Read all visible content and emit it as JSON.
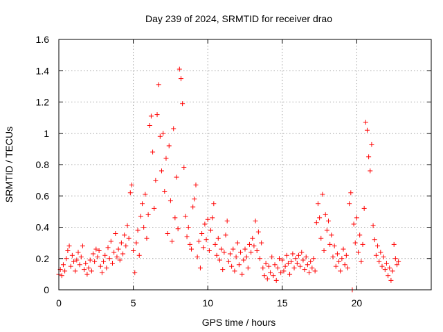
{
  "chart_data": {
    "type": "scatter",
    "title": "Day 239 of 2024, SRMTID for receiver drao",
    "xlabel": "GPS time / hours",
    "ylabel": "SRMTID / TECUs",
    "xlim": [
      0,
      25
    ],
    "ylim": [
      0,
      1.6
    ],
    "xticks": [
      0,
      5,
      10,
      15,
      20
    ],
    "xtick_labels": [
      "0",
      "5",
      "10",
      "15",
      "20"
    ],
    "yticks": [
      0,
      0.2,
      0.4,
      0.6,
      0.8,
      1,
      1.2,
      1.4,
      1.6
    ],
    "ytick_labels": [
      "0",
      "0.2",
      "0.4",
      "0.6",
      "0.8",
      "1",
      "1.2",
      "1.4",
      "1.6"
    ],
    "grid": true,
    "marker": "+",
    "color": "#ff0000",
    "series": [
      {
        "name": "drao",
        "points": [
          [
            0.0,
            0.1
          ],
          [
            0.1,
            0.13
          ],
          [
            0.2,
            0.09
          ],
          [
            0.3,
            0.16
          ],
          [
            0.4,
            0.12
          ],
          [
            0.5,
            0.2
          ],
          [
            0.6,
            0.25
          ],
          [
            0.7,
            0.28
          ],
          [
            0.8,
            0.15
          ],
          [
            0.9,
            0.22
          ],
          [
            1.0,
            0.18
          ],
          [
            1.1,
            0.12
          ],
          [
            1.2,
            0.19
          ],
          [
            1.3,
            0.24
          ],
          [
            1.4,
            0.16
          ],
          [
            1.5,
            0.21
          ],
          [
            1.6,
            0.28
          ],
          [
            1.7,
            0.13
          ],
          [
            1.8,
            0.17
          ],
          [
            1.9,
            0.1
          ],
          [
            2.0,
            0.14
          ],
          [
            2.1,
            0.19
          ],
          [
            2.2,
            0.12
          ],
          [
            2.3,
            0.23
          ],
          [
            2.4,
            0.18
          ],
          [
            2.5,
            0.26
          ],
          [
            2.6,
            0.21
          ],
          [
            2.7,
            0.25
          ],
          [
            2.8,
            0.15
          ],
          [
            2.9,
            0.11
          ],
          [
            3.0,
            0.18
          ],
          [
            3.1,
            0.22
          ],
          [
            3.2,
            0.14
          ],
          [
            3.3,
            0.27
          ],
          [
            3.4,
            0.2
          ],
          [
            3.5,
            0.31
          ],
          [
            3.6,
            0.17
          ],
          [
            3.7,
            0.24
          ],
          [
            3.8,
            0.36
          ],
          [
            3.9,
            0.21
          ],
          [
            4.0,
            0.26
          ],
          [
            4.1,
            0.19
          ],
          [
            4.2,
            0.3
          ],
          [
            4.3,
            0.23
          ],
          [
            4.4,
            0.35
          ],
          [
            4.5,
            0.28
          ],
          [
            4.6,
            0.41
          ],
          [
            4.7,
            0.33
          ],
          [
            4.8,
            0.62
          ],
          [
            4.9,
            0.67
          ],
          [
            5.0,
            0.25
          ],
          [
            5.1,
            0.11
          ],
          [
            5.2,
            0.3
          ],
          [
            5.3,
            0.38
          ],
          [
            5.4,
            0.22
          ],
          [
            5.5,
            0.47
          ],
          [
            5.6,
            0.55
          ],
          [
            5.7,
            0.4
          ],
          [
            5.8,
            0.61
          ],
          [
            5.9,
            0.33
          ],
          [
            6.0,
            0.48
          ],
          [
            6.1,
            1.05
          ],
          [
            6.2,
            1.11
          ],
          [
            6.3,
            0.88
          ],
          [
            6.4,
            0.52
          ],
          [
            6.5,
            0.7
          ],
          [
            6.6,
            1.12
          ],
          [
            6.7,
            1.31
          ],
          [
            6.8,
            0.98
          ],
          [
            6.9,
            0.76
          ],
          [
            7.0,
            1.0
          ],
          [
            7.1,
            0.63
          ],
          [
            7.2,
            0.84
          ],
          [
            7.3,
            0.36
          ],
          [
            7.4,
            0.92
          ],
          [
            7.5,
            0.57
          ],
          [
            7.6,
            0.31
          ],
          [
            7.7,
            1.03
          ],
          [
            7.8,
            0.46
          ],
          [
            7.9,
            0.72
          ],
          [
            8.0,
            0.39
          ],
          [
            8.1,
            1.41
          ],
          [
            8.2,
            1.35
          ],
          [
            8.3,
            1.19
          ],
          [
            8.4,
            0.78
          ],
          [
            8.5,
            0.47
          ],
          [
            8.6,
            0.34
          ],
          [
            8.7,
            0.4
          ],
          [
            8.8,
            0.29
          ],
          [
            8.9,
            0.26
          ],
          [
            9.0,
            0.53
          ],
          [
            9.1,
            0.58
          ],
          [
            9.2,
            0.67
          ],
          [
            9.3,
            0.21
          ],
          [
            9.4,
            0.31
          ],
          [
            9.5,
            0.14
          ],
          [
            9.6,
            0.36
          ],
          [
            9.7,
            0.27
          ],
          [
            9.8,
            0.42
          ],
          [
            9.9,
            0.32
          ],
          [
            10.0,
            0.45
          ],
          [
            10.1,
            0.25
          ],
          [
            10.2,
            0.38
          ],
          [
            10.3,
            0.46
          ],
          [
            10.4,
            0.55
          ],
          [
            10.5,
            0.29
          ],
          [
            10.6,
            0.22
          ],
          [
            10.7,
            0.33
          ],
          [
            10.8,
            0.19
          ],
          [
            10.9,
            0.26
          ],
          [
            11.0,
            0.13
          ],
          [
            11.1,
            0.24
          ],
          [
            11.2,
            0.35
          ],
          [
            11.3,
            0.44
          ],
          [
            11.4,
            0.18
          ],
          [
            11.5,
            0.23
          ],
          [
            11.6,
            0.15
          ],
          [
            11.7,
            0.26
          ],
          [
            11.8,
            0.12
          ],
          [
            11.9,
            0.21
          ],
          [
            12.0,
            0.3
          ],
          [
            12.1,
            0.16
          ],
          [
            12.2,
            0.24
          ],
          [
            12.3,
            0.1
          ],
          [
            12.4,
            0.19
          ],
          [
            12.5,
            0.26
          ],
          [
            12.6,
            0.21
          ],
          [
            12.7,
            0.14
          ],
          [
            12.8,
            0.29
          ],
          [
            12.9,
            0.24
          ],
          [
            13.0,
            0.33
          ],
          [
            13.1,
            0.28
          ],
          [
            13.2,
            0.44
          ],
          [
            13.3,
            0.25
          ],
          [
            13.4,
            0.37
          ],
          [
            13.5,
            0.2
          ],
          [
            13.6,
            0.3
          ],
          [
            13.7,
            0.14
          ],
          [
            13.8,
            0.09
          ],
          [
            13.9,
            0.17
          ],
          [
            14.0,
            0.07
          ],
          [
            14.1,
            0.15
          ],
          [
            14.2,
            0.11
          ],
          [
            14.3,
            0.21
          ],
          [
            14.4,
            0.09
          ],
          [
            14.5,
            0.16
          ],
          [
            14.6,
            0.06
          ],
          [
            14.7,
            0.14
          ],
          [
            14.8,
            0.2
          ],
          [
            14.9,
            0.11
          ],
          [
            15.0,
            0.19
          ],
          [
            15.1,
            0.12
          ],
          [
            15.2,
            0.15
          ],
          [
            15.3,
            0.22
          ],
          [
            15.4,
            0.17
          ],
          [
            15.5,
            0.1
          ],
          [
            15.6,
            0.18
          ],
          [
            15.7,
            0.23
          ],
          [
            15.8,
            0.14
          ],
          [
            15.9,
            0.2
          ],
          [
            16.0,
            0.17
          ],
          [
            16.1,
            0.22
          ],
          [
            16.2,
            0.15
          ],
          [
            16.3,
            0.24
          ],
          [
            16.4,
            0.19
          ],
          [
            16.5,
            0.13
          ],
          [
            16.6,
            0.21
          ],
          [
            16.7,
            0.16
          ],
          [
            16.8,
            0.11
          ],
          [
            16.9,
            0.18
          ],
          [
            17.0,
            0.14
          ],
          [
            17.1,
            0.2
          ],
          [
            17.2,
            0.12
          ],
          [
            17.3,
            0.43
          ],
          [
            17.4,
            0.55
          ],
          [
            17.5,
            0.46
          ],
          [
            17.6,
            0.33
          ],
          [
            17.7,
            0.61
          ],
          [
            17.8,
            0.25
          ],
          [
            17.9,
            0.48
          ],
          [
            18.0,
            0.38
          ],
          [
            18.1,
            0.44
          ],
          [
            18.2,
            0.29
          ],
          [
            18.3,
            0.35
          ],
          [
            18.4,
            0.21
          ],
          [
            18.5,
            0.28
          ],
          [
            18.6,
            0.15
          ],
          [
            18.7,
            0.23
          ],
          [
            18.8,
            0.18
          ],
          [
            18.9,
            0.12
          ],
          [
            19.0,
            0.2
          ],
          [
            19.1,
            0.26
          ],
          [
            19.2,
            0.16
          ],
          [
            19.3,
            0.22
          ],
          [
            19.4,
            0.14
          ],
          [
            19.5,
            0.55
          ],
          [
            19.6,
            0.62
          ],
          [
            19.7,
            0.0
          ],
          [
            19.8,
            0.42
          ],
          [
            19.9,
            0.3
          ],
          [
            20.0,
            0.46
          ],
          [
            20.1,
            0.24
          ],
          [
            20.2,
            0.35
          ],
          [
            20.3,
            0.18
          ],
          [
            20.4,
            0.29
          ],
          [
            20.5,
            0.52
          ],
          [
            20.6,
            1.07
          ],
          [
            20.7,
            1.02
          ],
          [
            20.8,
            0.85
          ],
          [
            20.9,
            0.76
          ],
          [
            21.0,
            0.93
          ],
          [
            21.1,
            0.41
          ],
          [
            21.2,
            0.32
          ],
          [
            21.3,
            0.22
          ],
          [
            21.4,
            0.28
          ],
          [
            21.5,
            0.18
          ],
          [
            21.6,
            0.24
          ],
          [
            21.7,
            0.15
          ],
          [
            21.8,
            0.21
          ],
          [
            21.9,
            0.13
          ],
          [
            22.0,
            0.17
          ],
          [
            22.1,
            0.09
          ],
          [
            22.2,
            0.14
          ],
          [
            22.3,
            0.06
          ],
          [
            22.4,
            0.12
          ],
          [
            22.5,
            0.29
          ],
          [
            22.6,
            0.2
          ],
          [
            22.7,
            0.16
          ],
          [
            22.8,
            0.18
          ]
        ]
      }
    ]
  }
}
